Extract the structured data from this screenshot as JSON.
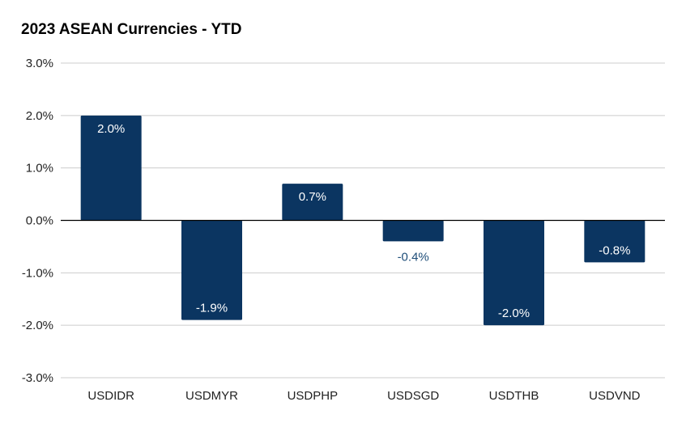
{
  "chart_data": {
    "type": "bar",
    "title": "2023 ASEAN Currencies - YTD",
    "categories": [
      "USDIDR",
      "USDMYR",
      "USDPHP",
      "USDSGD",
      "USDTHB",
      "USDVND"
    ],
    "values": [
      2.0,
      -1.9,
      0.7,
      -0.4,
      -2.0,
      -0.8
    ],
    "value_labels": [
      "2.0%",
      "-1.9%",
      "0.7%",
      "-0.4%",
      "-2.0%",
      "-0.8%"
    ],
    "label_position": [
      "inside",
      "inside",
      "inside",
      "outside",
      "inside",
      "inside"
    ],
    "yticks": [
      3,
      2,
      1,
      0,
      -1,
      -2,
      -3
    ],
    "ytick_labels": [
      "3.0%",
      "2.0%",
      "1.0%",
      "0.0%",
      "-1.0%",
      "-2.0%",
      "-3.0%"
    ],
    "ylim": [
      -3,
      3
    ],
    "xlabel": "",
    "ylabel": "",
    "grid": true,
    "legend": "none",
    "colors": {
      "bar": "#0b3561",
      "label_inside": "#ffffff",
      "label_outside": "#1f4e79",
      "grid": "#cccccc",
      "zero_line": "#000000"
    }
  }
}
